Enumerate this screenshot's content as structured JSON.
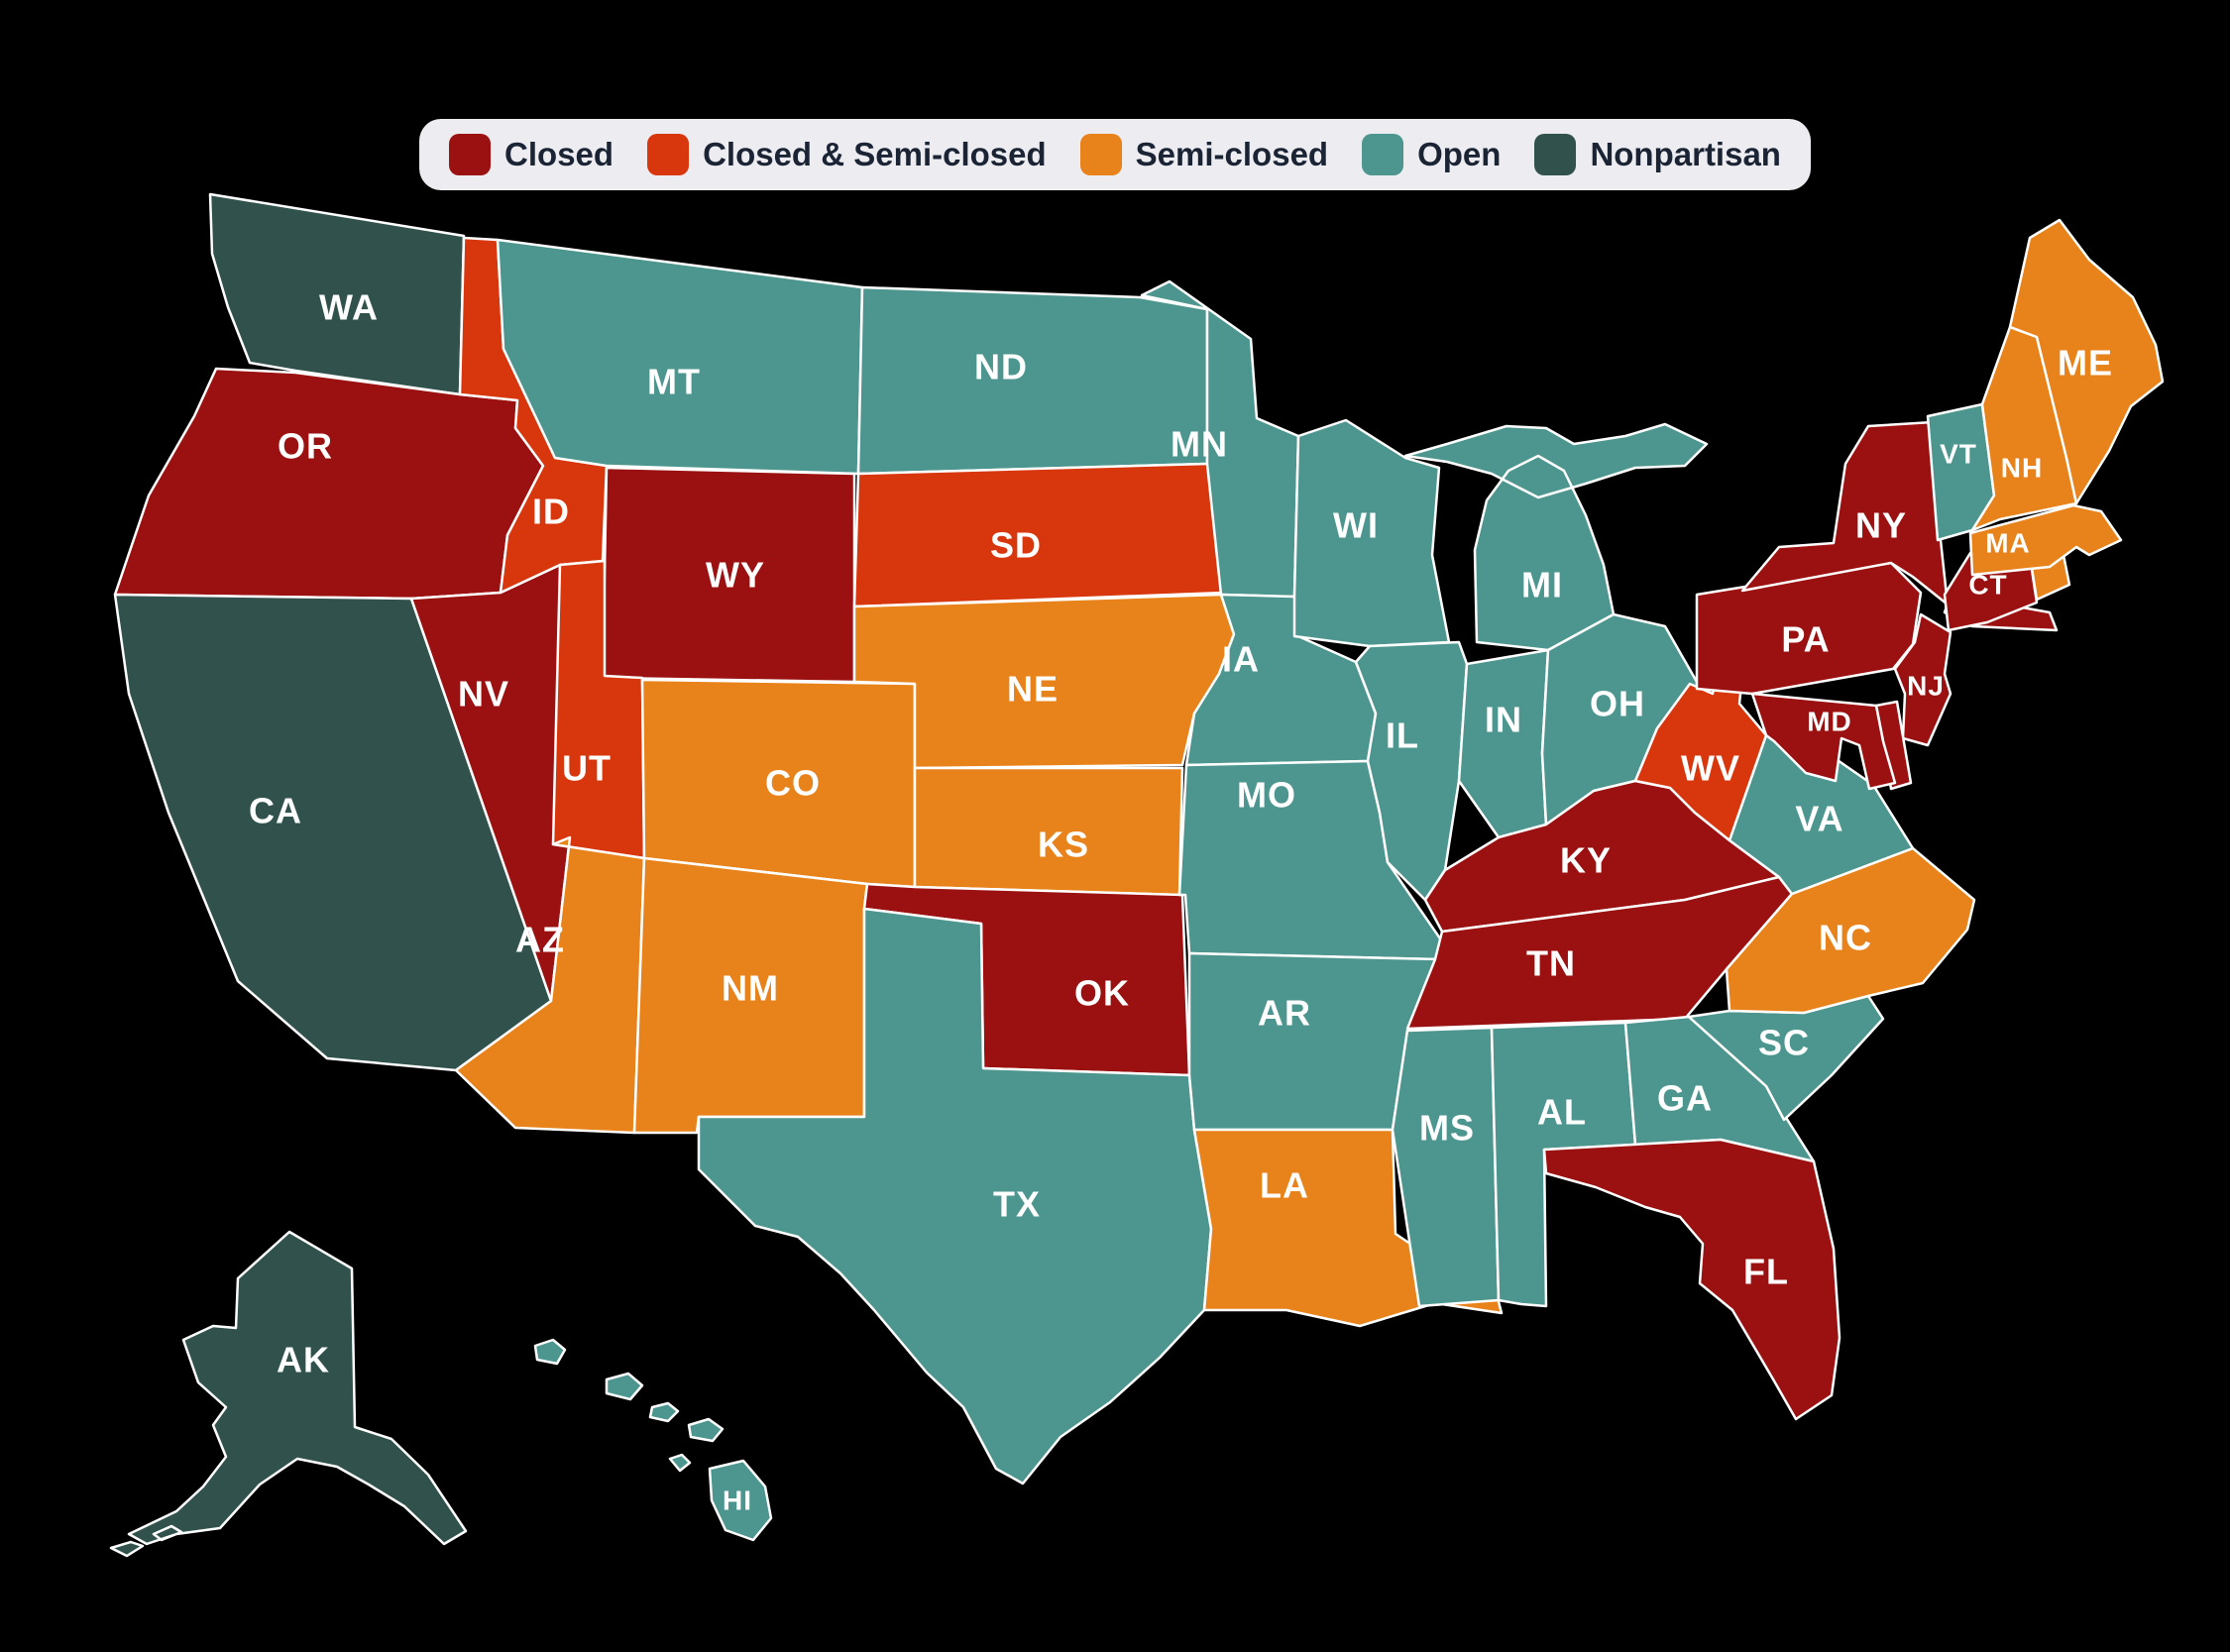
{
  "page": {
    "background": "#000000",
    "description": "U.S. choropleth map of state primary election types"
  },
  "legend": {
    "items": [
      {
        "key": "closed",
        "label": "Closed",
        "color": "#9B1010"
      },
      {
        "key": "closed_semi",
        "label": "Closed & Semi-closed",
        "color": "#D8360D"
      },
      {
        "key": "semi",
        "label": "Semi-closed",
        "color": "#E8821A"
      },
      {
        "key": "open",
        "label": "Open",
        "color": "#4D968F"
      },
      {
        "key": "nonpartisan",
        "label": "Nonpartisan",
        "color": "#31524C"
      }
    ],
    "background": "#EDEDF1",
    "text_color": "#1B2434"
  },
  "map": {
    "border_color": "#FFFFFF",
    "label_color": "#FFFFFF",
    "states": [
      {
        "abbr": "WA",
        "category": "nonpartisan",
        "label_visible": true
      },
      {
        "abbr": "OR",
        "category": "closed",
        "label_visible": true
      },
      {
        "abbr": "CA",
        "category": "nonpartisan",
        "label_visible": true
      },
      {
        "abbr": "NV",
        "category": "closed",
        "label_visible": true
      },
      {
        "abbr": "ID",
        "category": "closed_semi",
        "label_visible": true
      },
      {
        "abbr": "MT",
        "category": "open",
        "label_visible": true
      },
      {
        "abbr": "WY",
        "category": "closed",
        "label_visible": true
      },
      {
        "abbr": "UT",
        "category": "closed_semi",
        "label_visible": true
      },
      {
        "abbr": "CO",
        "category": "semi",
        "label_visible": true
      },
      {
        "abbr": "AZ",
        "category": "semi",
        "label_visible": true
      },
      {
        "abbr": "NM",
        "category": "semi",
        "label_visible": true
      },
      {
        "abbr": "ND",
        "category": "open",
        "label_visible": true
      },
      {
        "abbr": "SD",
        "category": "closed_semi",
        "label_visible": true
      },
      {
        "abbr": "NE",
        "category": "semi",
        "label_visible": true
      },
      {
        "abbr": "KS",
        "category": "semi",
        "label_visible": true
      },
      {
        "abbr": "OK",
        "category": "closed",
        "label_visible": true
      },
      {
        "abbr": "TX",
        "category": "open",
        "label_visible": true
      },
      {
        "abbr": "MN",
        "category": "open",
        "label_visible": true
      },
      {
        "abbr": "IA",
        "category": "open",
        "label_visible": true
      },
      {
        "abbr": "MO",
        "category": "open",
        "label_visible": true
      },
      {
        "abbr": "AR",
        "category": "open",
        "label_visible": true
      },
      {
        "abbr": "LA",
        "category": "semi",
        "label_visible": true
      },
      {
        "abbr": "WI",
        "category": "open",
        "label_visible": true
      },
      {
        "abbr": "IL",
        "category": "open",
        "label_visible": true
      },
      {
        "abbr": "IN",
        "category": "open",
        "label_visible": true
      },
      {
        "abbr": "MI",
        "category": "open",
        "label_visible": true
      },
      {
        "abbr": "OH",
        "category": "open",
        "label_visible": true
      },
      {
        "abbr": "KY",
        "category": "closed",
        "label_visible": true
      },
      {
        "abbr": "TN",
        "category": "closed",
        "label_visible": true
      },
      {
        "abbr": "MS",
        "category": "open",
        "label_visible": true
      },
      {
        "abbr": "AL",
        "category": "open",
        "label_visible": true
      },
      {
        "abbr": "GA",
        "category": "open",
        "label_visible": true
      },
      {
        "abbr": "FL",
        "category": "closed",
        "label_visible": true
      },
      {
        "abbr": "SC",
        "category": "open",
        "label_visible": true
      },
      {
        "abbr": "NC",
        "category": "semi",
        "label_visible": true
      },
      {
        "abbr": "VA",
        "category": "open",
        "label_visible": true
      },
      {
        "abbr": "WV",
        "category": "closed_semi",
        "label_visible": true
      },
      {
        "abbr": "PA",
        "category": "closed",
        "label_visible": true
      },
      {
        "abbr": "NY",
        "category": "closed",
        "label_visible": true
      },
      {
        "abbr": "NJ",
        "category": "closed",
        "label_visible": true
      },
      {
        "abbr": "DE",
        "category": "closed",
        "label_visible": false
      },
      {
        "abbr": "MD",
        "category": "closed",
        "label_visible": true
      },
      {
        "abbr": "CT",
        "category": "closed",
        "label_visible": true
      },
      {
        "abbr": "RI",
        "category": "semi",
        "label_visible": false
      },
      {
        "abbr": "MA",
        "category": "semi",
        "label_visible": true
      },
      {
        "abbr": "VT",
        "category": "open",
        "label_visible": true
      },
      {
        "abbr": "NH",
        "category": "semi",
        "label_visible": true
      },
      {
        "abbr": "ME",
        "category": "semi",
        "label_visible": true
      },
      {
        "abbr": "AK",
        "category": "nonpartisan",
        "label_visible": true
      },
      {
        "abbr": "HI",
        "category": "open",
        "label_visible": true
      }
    ]
  }
}
